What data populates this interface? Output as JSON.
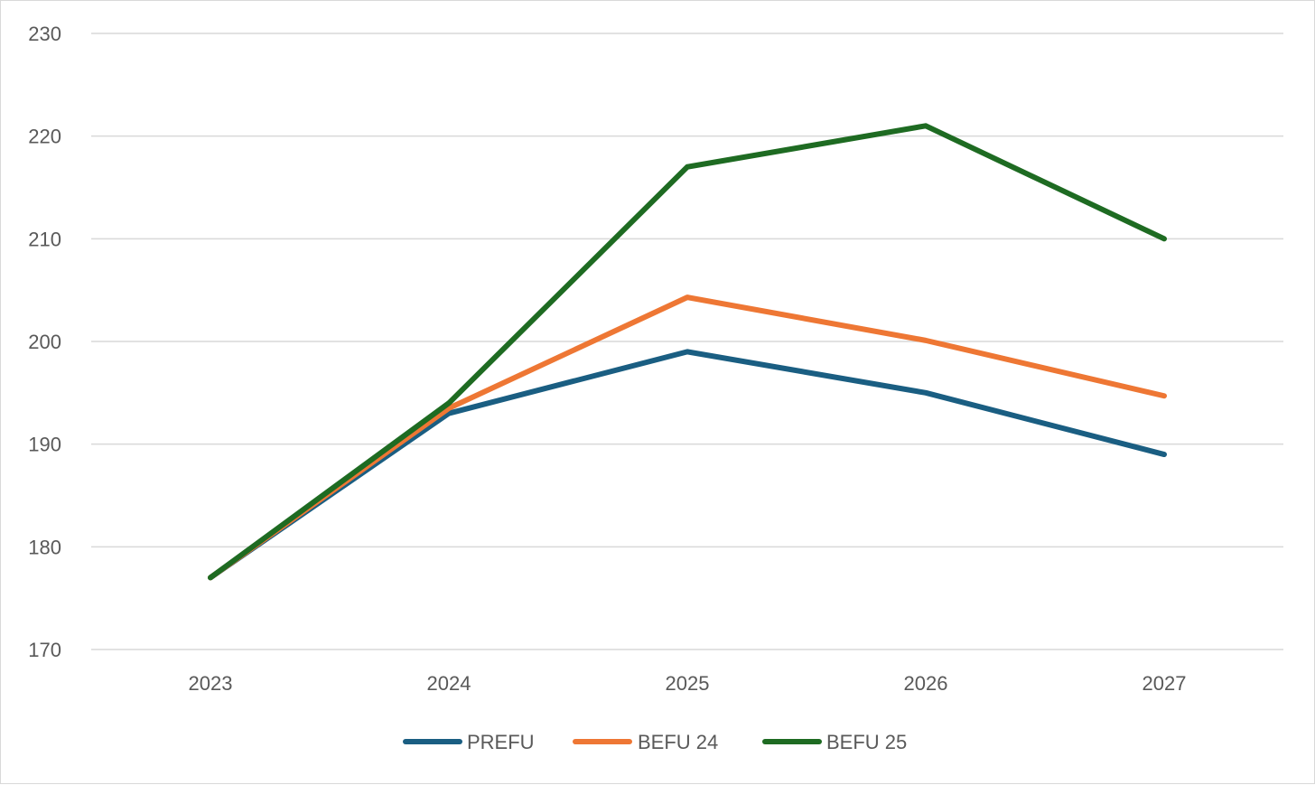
{
  "chart_data": {
    "type": "line",
    "title": "",
    "xlabel": "",
    "ylabel": "",
    "categories": [
      "2023",
      "2024",
      "2025",
      "2026",
      "2027"
    ],
    "ylim": [
      170,
      230
    ],
    "yticks": [
      170,
      180,
      190,
      200,
      210,
      220,
      230
    ],
    "grid": true,
    "legend_position": "bottom",
    "series": [
      {
        "name": "PREFU",
        "color": "#1a5e82",
        "values": [
          177,
          193,
          199,
          195,
          189
        ]
      },
      {
        "name": "BEFU 24",
        "color": "#ee7734",
        "values": [
          177,
          193.5,
          204.3,
          200.1,
          194.7
        ]
      },
      {
        "name": "BEFU 25",
        "color": "#1e6b22",
        "values": [
          177,
          194,
          217,
          221,
          210
        ]
      }
    ]
  }
}
